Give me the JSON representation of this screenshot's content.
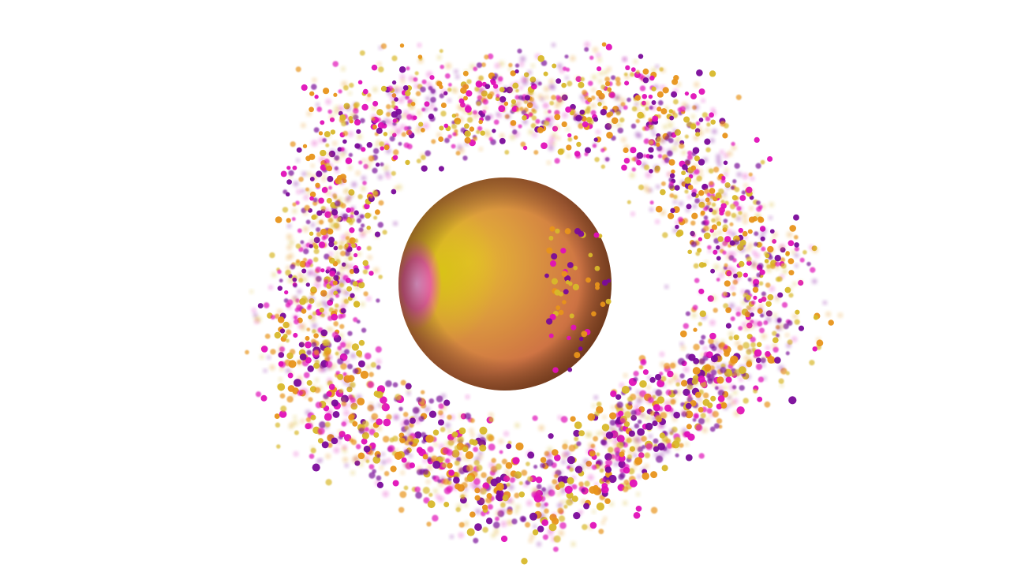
{
  "scene": {
    "background_color": "#ffffff",
    "central_sphere": {
      "colors": {
        "highlight_pink": "#e85aa8",
        "highlight_yellow": "#d8c416",
        "body_orange": "#d98a48",
        "rim_dark": "#8e4a26"
      }
    },
    "particles": {
      "palette": {
        "purple": "#7a0a9a",
        "magenta": "#e010b8",
        "orange": "#e8941a",
        "yellow": "#d8b82a"
      },
      "shape": "sphere",
      "arrangement": "ring"
    }
  }
}
